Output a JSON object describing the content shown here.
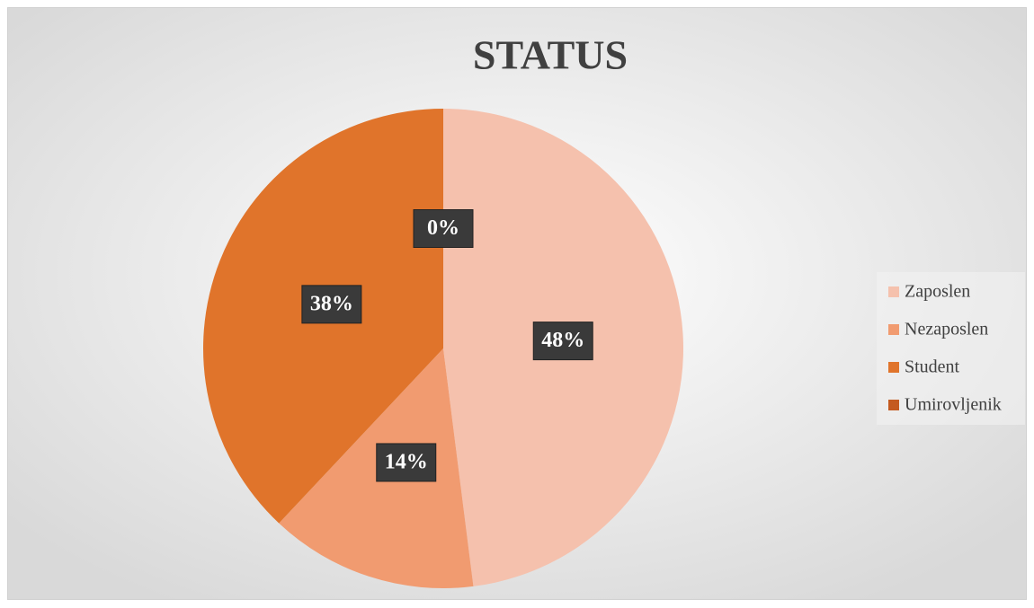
{
  "chart_data": {
    "type": "pie",
    "title": "STATUS",
    "categories": [
      "Zaposlen",
      "Nezaposlen",
      "Student",
      "Umirovljenik"
    ],
    "values": [
      48,
      14,
      38,
      0
    ],
    "value_labels": [
      "48%",
      "14%",
      "38%",
      "0%"
    ],
    "colors": [
      "#f5c1ad",
      "#f19b70",
      "#e0742b",
      "#c45a20"
    ],
    "legend": "right"
  }
}
